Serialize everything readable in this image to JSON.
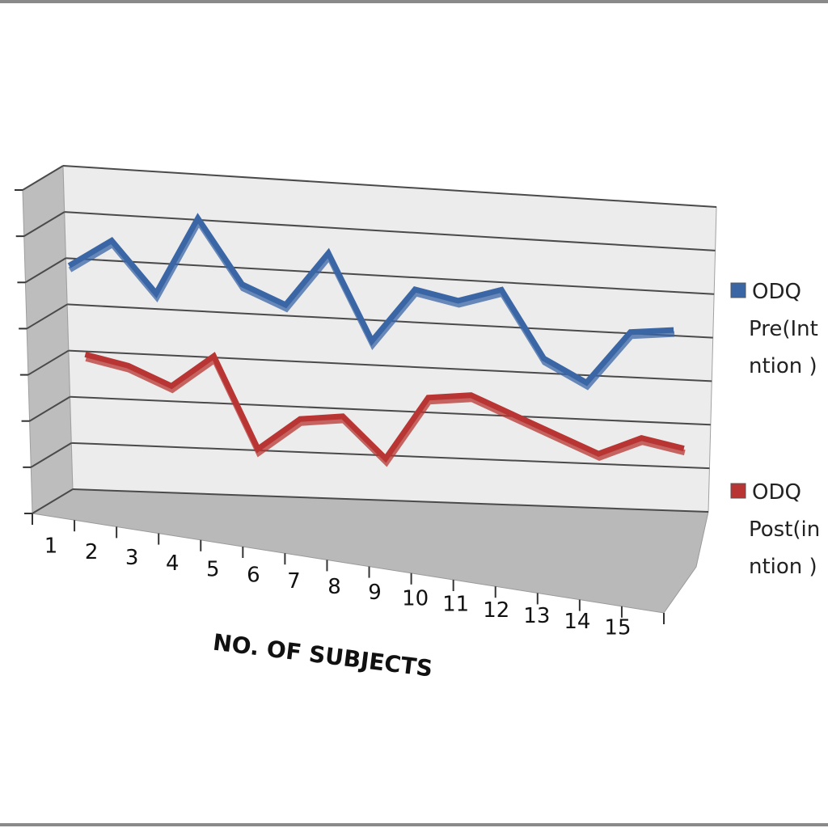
{
  "chart_data": {
    "type": "line",
    "style": "3d-line",
    "title": "",
    "xlabel": "NO. OF SUBJECTS",
    "ylabel": "",
    "categories": [
      "1",
      "2",
      "3",
      "4",
      "5",
      "6",
      "7",
      "8",
      "9",
      "10",
      "11",
      "12",
      "13",
      "14",
      "15"
    ],
    "ylim": [
      0,
      70
    ],
    "y_gridlines": [
      0,
      10,
      20,
      30,
      40,
      50,
      60,
      70
    ],
    "grid": true,
    "legend_position": "right",
    "series": [
      {
        "name": "ODQ Pre(Intervention)",
        "legend_lines": [
          "ODQ",
          "Pre(Int",
          "ntion )"
        ],
        "color": "#3a66a6",
        "values": [
          51,
          57,
          46,
          63,
          49,
          45,
          57,
          38,
          50,
          48,
          51,
          36,
          31,
          43,
          44
        ]
      },
      {
        "name": "ODQ Post(intervention)",
        "legend_lines": [
          "ODQ",
          "Post(in",
          "ntion )"
        ],
        "color": "#b83533",
        "values": [
          30,
          28,
          24,
          31,
          11,
          18,
          19,
          10,
          24,
          25,
          21,
          17,
          13,
          17,
          15
        ]
      }
    ]
  }
}
